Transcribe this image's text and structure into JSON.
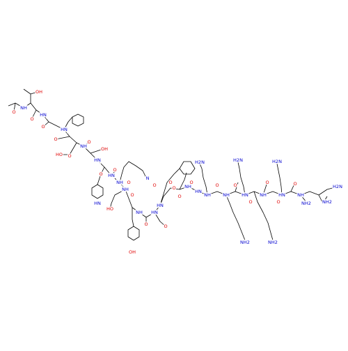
{
  "labels": [
    "O",
    "NH",
    "OH",
    "O",
    "HN",
    "O",
    "HN",
    "O",
    "HO",
    "NH",
    "O",
    "O",
    "HN",
    "OH",
    "HN",
    "O",
    "NH",
    "O",
    "NH",
    "HN",
    "O",
    "HO",
    "O",
    "O",
    "NH",
    "HN",
    "O",
    "N",
    "O",
    "O",
    "OH",
    "HN",
    "O",
    "NH",
    "HN",
    "O",
    "O",
    "NH",
    "H2N",
    "O",
    "NH",
    "NH2",
    "O",
    "HN",
    "H2N",
    "O",
    "NH",
    "NH2",
    "O",
    "HN",
    "H2N",
    "O",
    "NH",
    "NH2",
    "O",
    "NH2",
    "H2N"
  ]
}
